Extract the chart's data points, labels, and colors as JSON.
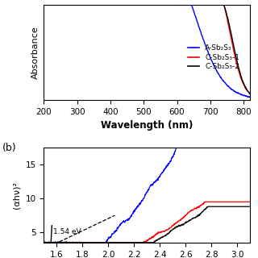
{
  "top_panel": {
    "xlabel": "Wavelength (nm)",
    "ylabel": "Absorbance",
    "xlim": [
      200,
      820
    ],
    "ylim_auto": true,
    "legend": [
      "A-Sb₂S₃",
      "C-Sb₂S₃-1",
      "C-Sb₂S₃-2"
    ],
    "colors": [
      "blue",
      "red",
      "black"
    ],
    "xticks": [
      200,
      300,
      400,
      500,
      600,
      700,
      800
    ]
  },
  "bottom_panel": {
    "ylabel": "(αhν)²",
    "xlim": [
      1.5,
      3.1
    ],
    "ylim": [
      3.5,
      17.5
    ],
    "yticks": [
      5,
      10,
      15
    ],
    "annotation": "1.54 eV",
    "colors": [
      "blue",
      "red",
      "black"
    ]
  }
}
